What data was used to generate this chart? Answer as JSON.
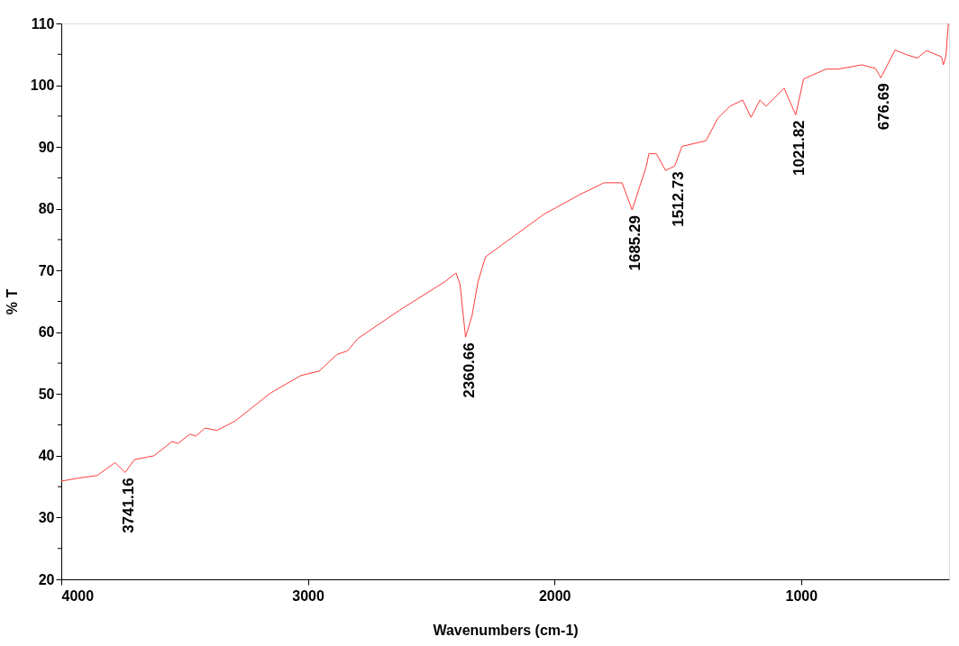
{
  "chart_data": {
    "type": "line",
    "xlabel": "Wavenumbers (cm-1)",
    "ylabel": "% T",
    "xlim": [
      4000,
      400
    ],
    "xticks": [
      4000,
      3000,
      2000,
      1000
    ],
    "ylim": [
      20,
      110
    ],
    "yticks": [
      20,
      {
        "value": 25,
        "label": null
      },
      30,
      {
        "value": 35,
        "label": null
      },
      40,
      {
        "value": 45,
        "label": null
      },
      50,
      {
        "value": 55,
        "label": null
      },
      60,
      {
        "value": 65,
        "label": null
      },
      70,
      {
        "value": 75,
        "label": null
      },
      80,
      {
        "value": 85,
        "label": null
      },
      90,
      {
        "value": 95,
        "label": null
      },
      100,
      {
        "value": 105,
        "label": null
      },
      110
    ],
    "grid": false,
    "series": [
      {
        "color": "#ff3b3b",
        "x": [
          4000,
          3928,
          3855,
          3782,
          3741.16,
          3703,
          3624,
          3551,
          3527,
          3478,
          3454,
          3417,
          3369,
          3296,
          3150,
          3028,
          2955,
          2882,
          2839,
          2797,
          2627,
          2444,
          2399,
          2383,
          2360.66,
          2335,
          2310,
          2280,
          2043,
          1897,
          1799,
          1726,
          1685.29,
          1629,
          1617,
          1587,
          1550,
          1512.73,
          1483,
          1386,
          1337,
          1288,
          1237,
          1203,
          1167,
          1142,
          1069,
          1021.82,
          990,
          899,
          850,
          753,
          698,
          676.69,
          619,
          571,
          528,
          492,
          431,
          423,
          413,
          403
        ],
        "values": [
          35.9,
          36.4,
          36.8,
          38.9,
          37.3,
          39.4,
          40.0,
          42.3,
          42.0,
          43.5,
          43.2,
          44.5,
          44.1,
          45.6,
          50.2,
          53.0,
          53.7,
          56.4,
          57.0,
          59.0,
          63.6,
          68.2,
          69.6,
          67.7,
          59.2,
          62.6,
          68.2,
          72.2,
          79.1,
          82.3,
          84.2,
          84.2,
          79.8,
          86.7,
          88.9,
          88.9,
          86.2,
          86.9,
          90.1,
          91.0,
          94.7,
          96.6,
          97.6,
          94.8,
          97.6,
          96.6,
          99.5,
          95.2,
          101.0,
          102.6,
          102.6,
          103.3,
          102.7,
          101.2,
          105.7,
          104.9,
          104.4,
          105.6,
          104.6,
          103.3,
          104.7,
          110
        ]
      }
    ],
    "annotations": [
      {
        "text": "3741.16",
        "x": 3741.16,
        "y": 37.3
      },
      {
        "text": "2360.66",
        "x": 2360.66,
        "y": 59.2
      },
      {
        "text": "1685.29",
        "x": 1685.29,
        "y": 79.8
      },
      {
        "text": "1512.73",
        "x": 1512.73,
        "y": 86.9
      },
      {
        "text": "1021.82",
        "x": 1021.82,
        "y": 95.2
      },
      {
        "text": "676.69",
        "x": 676.69,
        "y": 101.2
      }
    ]
  }
}
